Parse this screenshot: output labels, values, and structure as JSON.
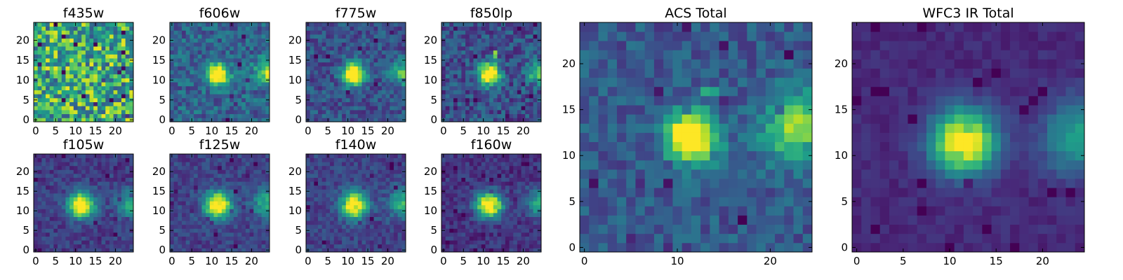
{
  "figure": {
    "colormap": "viridis",
    "colormap_stops": [
      "#440154",
      "#482878",
      "#3e4989",
      "#31688e",
      "#26828e",
      "#1f9e89",
      "#35b779",
      "#6ece58",
      "#b5de2b",
      "#fde725"
    ],
    "image_size": [
      25,
      25
    ]
  },
  "chart_data": [
    {
      "type": "heatmap",
      "title": "f435w",
      "xticks": [
        "0",
        "5",
        "10",
        "15",
        "20"
      ],
      "yticks": [
        "0",
        "5",
        "10",
        "15",
        "20"
      ],
      "xlim": [
        0,
        24
      ],
      "ylim": [
        0,
        24
      ],
      "sources": [],
      "noise_only": true,
      "base": 0.62,
      "noise": 0.35
    },
    {
      "type": "heatmap",
      "title": "f606w",
      "xticks": [
        "0",
        "5",
        "10",
        "15",
        "20"
      ],
      "yticks": [
        "0",
        "5",
        "10",
        "15",
        "20"
      ],
      "xlim": [
        0,
        24
      ],
      "ylim": [
        0,
        24
      ],
      "sources": [
        {
          "x": 11.5,
          "y": 11.5,
          "amp": 1.0,
          "sigma": 1.9
        },
        {
          "x": 24,
          "y": 12,
          "amp": 0.55,
          "sigma": 2.2
        }
      ],
      "base": 0.32,
      "noise": 0.16
    },
    {
      "type": "heatmap",
      "title": "f775w",
      "xticks": [
        "0",
        "5",
        "10",
        "15",
        "20"
      ],
      "yticks": [
        "0",
        "5",
        "10",
        "15",
        "20"
      ],
      "xlim": [
        0,
        24
      ],
      "ylim": [
        0,
        24
      ],
      "sources": [
        {
          "x": 11.5,
          "y": 11.5,
          "amp": 1.0,
          "sigma": 1.9
        },
        {
          "x": 24,
          "y": 12,
          "amp": 0.5,
          "sigma": 2.2
        }
      ],
      "base": 0.25,
      "noise": 0.14
    },
    {
      "type": "heatmap",
      "title": "f850lp",
      "xticks": [
        "0",
        "5",
        "10",
        "15",
        "20"
      ],
      "yticks": [
        "0",
        "5",
        "10",
        "15",
        "20"
      ],
      "xlim": [
        0,
        24
      ],
      "ylim": [
        0,
        24
      ],
      "sources": [
        {
          "x": 11.5,
          "y": 11.5,
          "amp": 1.0,
          "sigma": 1.9
        },
        {
          "x": 24,
          "y": 12,
          "amp": 0.5,
          "sigma": 2.2
        },
        {
          "x": 13,
          "y": 16.5,
          "amp": 0.9,
          "sigma": 0.45
        }
      ],
      "base": 0.24,
      "noise": 0.16
    },
    {
      "type": "heatmap",
      "title": "f105w",
      "xticks": [
        "0",
        "5",
        "10",
        "15",
        "20"
      ],
      "yticks": [
        "0",
        "5",
        "10",
        "15",
        "20"
      ],
      "xlim": [
        0,
        24
      ],
      "ylim": [
        0,
        24
      ],
      "sources": [
        {
          "x": 11.5,
          "y": 11.5,
          "amp": 1.0,
          "sigma": 2.3
        },
        {
          "x": 24,
          "y": 12,
          "amp": 0.45,
          "sigma": 2.6
        }
      ],
      "base": 0.18,
      "noise": 0.1
    },
    {
      "type": "heatmap",
      "title": "f125w",
      "xticks": [
        "0",
        "5",
        "10",
        "15",
        "20"
      ],
      "yticks": [
        "0",
        "5",
        "10",
        "15",
        "20"
      ],
      "xlim": [
        0,
        24
      ],
      "ylim": [
        0,
        24
      ],
      "sources": [
        {
          "x": 11.5,
          "y": 11.5,
          "amp": 1.0,
          "sigma": 2.3
        },
        {
          "x": 24,
          "y": 12,
          "amp": 0.45,
          "sigma": 2.6
        }
      ],
      "base": 0.2,
      "noise": 0.1
    },
    {
      "type": "heatmap",
      "title": "f140w",
      "xticks": [
        "0",
        "5",
        "10",
        "15",
        "20"
      ],
      "yticks": [
        "0",
        "5",
        "10",
        "15",
        "20"
      ],
      "xlim": [
        0,
        24
      ],
      "ylim": [
        0,
        24
      ],
      "sources": [
        {
          "x": 11.5,
          "y": 11.5,
          "amp": 1.0,
          "sigma": 2.3
        },
        {
          "x": 24,
          "y": 12,
          "amp": 0.45,
          "sigma": 2.6
        }
      ],
      "base": 0.2,
      "noise": 0.1
    },
    {
      "type": "heatmap",
      "title": "f160w",
      "xticks": [
        "0",
        "5",
        "10",
        "15",
        "20"
      ],
      "yticks": [
        "0",
        "5",
        "10",
        "15",
        "20"
      ],
      "xlim": [
        0,
        24
      ],
      "ylim": [
        0,
        24
      ],
      "sources": [
        {
          "x": 11.5,
          "y": 11.5,
          "amp": 1.0,
          "sigma": 2.3
        },
        {
          "x": 24,
          "y": 12,
          "amp": 0.45,
          "sigma": 2.6
        }
      ],
      "base": 0.15,
      "noise": 0.1
    },
    {
      "type": "heatmap",
      "title": "ACS Total",
      "xticks": [
        "0",
        "10",
        "20"
      ],
      "yticks": [
        "0",
        "5",
        "10",
        "15",
        "20"
      ],
      "xlim": [
        0,
        24
      ],
      "ylim": [
        0,
        24
      ],
      "sources": [
        {
          "x": 11.5,
          "y": 12,
          "amp": 1.0,
          "sigma": 1.9
        },
        {
          "x": 23,
          "y": 13,
          "amp": 0.6,
          "sigma": 2.6
        },
        {
          "x": 13.5,
          "y": 17,
          "amp": 0.7,
          "sigma": 0.45
        }
      ],
      "base": 0.28,
      "noise": 0.12
    },
    {
      "type": "heatmap",
      "title": "WFC3 IR Total",
      "xticks": [
        "0",
        "5",
        "10",
        "15",
        "20"
      ],
      "yticks": [
        "0",
        "5",
        "10",
        "15",
        "20"
      ],
      "xlim": [
        0,
        24
      ],
      "ylim": [
        0,
        24
      ],
      "sources": [
        {
          "x": 11.5,
          "y": 11.5,
          "amp": 1.0,
          "sigma": 2.4
        },
        {
          "x": 24,
          "y": 12,
          "amp": 0.45,
          "sigma": 2.8
        }
      ],
      "base": 0.12,
      "noise": 0.05
    }
  ]
}
